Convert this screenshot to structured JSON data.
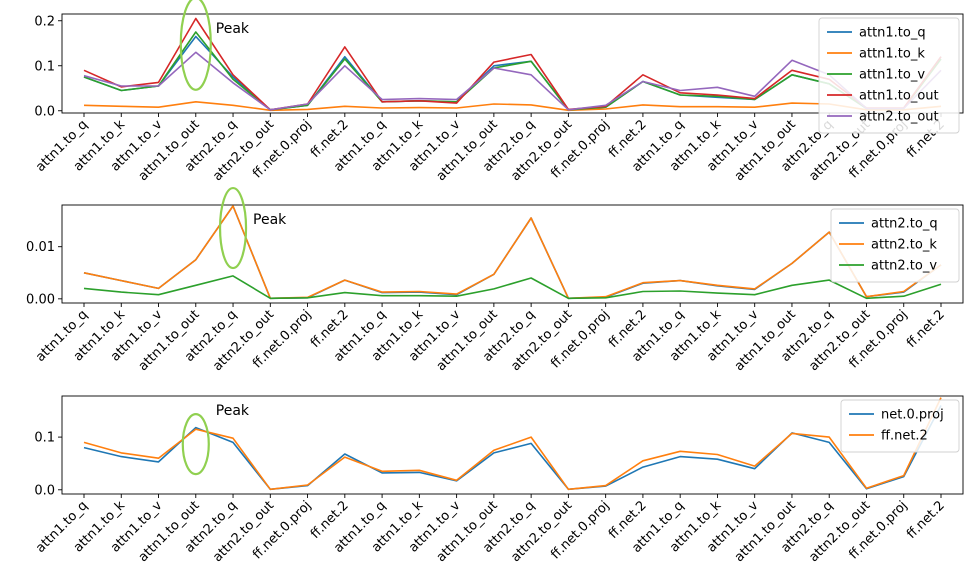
{
  "chart_data": [
    {
      "type": "line",
      "categories": [
        "attn1.to_q",
        "attn1.to_k",
        "attn1.to_v",
        "attn1.to_out",
        "attn2.to_q",
        "attn2.to_out",
        "ff.net.0.proj",
        "ff.net.2",
        "attn1.to_q",
        "attn1.to_k",
        "attn1.to_v",
        "attn1.to_out",
        "attn2.to_q",
        "attn2.to_out",
        "ff.net.0.proj",
        "ff.net.2",
        "attn1.to_q",
        "attn1.to_k",
        "attn1.to_v",
        "attn1.to_out",
        "attn2.to_q",
        "attn2.to_out",
        "ff.net.0.proj",
        "ff.net.2"
      ],
      "ylim": [
        -0.005,
        0.215
      ],
      "yticks": [
        0.0,
        0.1,
        0.2
      ],
      "ytick_labels": [
        "0.0",
        "0.1",
        "0.2"
      ],
      "legend_position": "top-right",
      "series": [
        {
          "name": "attn1.to_q",
          "color": "#1f77b4",
          "values": [
            0.075,
            0.045,
            0.055,
            0.165,
            0.075,
            0.002,
            0.012,
            0.12,
            0.02,
            0.022,
            0.02,
            0.1,
            0.11,
            0.002,
            0.008,
            0.065,
            0.035,
            0.03,
            0.025,
            0.08,
            0.06,
            0.005,
            0.005,
            0.12
          ]
        },
        {
          "name": "attn1.to_k",
          "color": "#ff7f0e",
          "values": [
            0.012,
            0.01,
            0.008,
            0.02,
            0.012,
            0.001,
            0.003,
            0.01,
            0.006,
            0.007,
            0.006,
            0.015,
            0.013,
            0.001,
            0.004,
            0.013,
            0.009,
            0.009,
            0.008,
            0.017,
            0.015,
            0.002,
            0.002,
            0.01
          ]
        },
        {
          "name": "attn1.to_v",
          "color": "#2ca02c",
          "values": [
            0.075,
            0.045,
            0.055,
            0.175,
            0.07,
            0.002,
            0.012,
            0.115,
            0.02,
            0.022,
            0.02,
            0.095,
            0.11,
            0.002,
            0.008,
            0.065,
            0.035,
            0.032,
            0.025,
            0.08,
            0.06,
            0.005,
            0.005,
            0.115
          ]
        },
        {
          "name": "attn1.to_out",
          "color": "#d62728",
          "values": [
            0.09,
            0.053,
            0.063,
            0.205,
            0.08,
            0.002,
            0.015,
            0.142,
            0.02,
            0.022,
            0.017,
            0.108,
            0.125,
            0.003,
            0.01,
            0.08,
            0.04,
            0.035,
            0.027,
            0.09,
            0.07,
            0.006,
            0.006,
            0.12
          ]
        },
        {
          "name": "attn2.to_out",
          "color": "#9467bd",
          "values": [
            0.078,
            0.055,
            0.055,
            0.13,
            0.062,
            0.002,
            0.015,
            0.1,
            0.025,
            0.027,
            0.025,
            0.095,
            0.08,
            0.002,
            0.012,
            0.065,
            0.045,
            0.052,
            0.032,
            0.112,
            0.08,
            0.005,
            0.005,
            0.09
          ]
        }
      ],
      "annotation": {
        "text": "Peak",
        "category_index": 3
      }
    },
    {
      "type": "line",
      "categories": [
        "attn1.to_q",
        "attn1.to_k",
        "attn1.to_v",
        "attn1.to_out",
        "attn2.to_q",
        "attn2.to_out",
        "ff.net.0.proj",
        "ff.net.2",
        "attn1.to_q",
        "attn1.to_k",
        "attn1.to_v",
        "attn1.to_out",
        "attn2.to_q",
        "attn2.to_out",
        "ff.net.0.proj",
        "ff.net.2",
        "attn1.to_q",
        "attn1.to_k",
        "attn1.to_v",
        "attn1.to_out",
        "attn2.to_q",
        "attn2.to_out",
        "ff.net.0.proj",
        "ff.net.2"
      ],
      "ylim": [
        -0.0008,
        0.018
      ],
      "yticks": [
        0.0,
        0.01
      ],
      "ytick_labels": [
        "0.00",
        "0.01"
      ],
      "legend_position": "top-right",
      "series": [
        {
          "name": "attn2.to_q",
          "color": "#1f77b4",
          "values": [
            0.005,
            0.0035,
            0.002,
            0.0075,
            0.0178,
            0.0001,
            0.0002,
            0.0036,
            0.0012,
            0.0013,
            0.0008,
            0.0047,
            0.0155,
            0.0001,
            0.0003,
            0.003,
            0.0035,
            0.0025,
            0.0018,
            0.0068,
            0.0128,
            0.0004,
            0.0013,
            0.0065
          ]
        },
        {
          "name": "attn2.to_k",
          "color": "#ff7f0e",
          "values": [
            0.005,
            0.0035,
            0.002,
            0.0075,
            0.0178,
            0.0001,
            0.0003,
            0.0036,
            0.0013,
            0.0014,
            0.0009,
            0.0047,
            0.0155,
            0.0001,
            0.0004,
            0.0031,
            0.0035,
            0.0026,
            0.0019,
            0.0068,
            0.0128,
            0.0004,
            0.0014,
            0.0065
          ]
        },
        {
          "name": "attn2.to_v",
          "color": "#2ca02c",
          "values": [
            0.002,
            0.0013,
            0.0008,
            0.0026,
            0.0044,
            0.0001,
            0.0002,
            0.0012,
            0.0006,
            0.0006,
            0.0005,
            0.0019,
            0.004,
            0.0001,
            0.0002,
            0.0014,
            0.0015,
            0.0011,
            0.0008,
            0.0026,
            0.0036,
            0.0001,
            0.0005,
            0.0028
          ]
        }
      ],
      "annotation": {
        "text": "Peak",
        "category_index": 4
      }
    },
    {
      "type": "line",
      "categories": [
        "attn1.to_q",
        "attn1.to_k",
        "attn1.to_v",
        "attn1.to_out",
        "attn2.to_q",
        "attn2.to_out",
        "ff.net.0.proj",
        "ff.net.2",
        "attn1.to_q",
        "attn1.to_k",
        "attn1.to_v",
        "attn1.to_out",
        "attn2.to_q",
        "attn2.to_out",
        "ff.net.0.proj",
        "ff.net.2",
        "attn1.to_q",
        "attn1.to_k",
        "attn1.to_v",
        "attn1.to_out",
        "attn2.to_q",
        "attn2.to_out",
        "ff.net.0.proj",
        "ff.net.2"
      ],
      "ylim": [
        -0.008,
        0.178
      ],
      "yticks": [
        0.0,
        0.1
      ],
      "ytick_labels": [
        "0.0",
        "0.1"
      ],
      "legend_position": "top-right",
      "series": [
        {
          "name": "net.0.proj",
          "color": "#1f77b4",
          "values": [
            0.08,
            0.063,
            0.053,
            0.118,
            0.09,
            0.001,
            0.008,
            0.068,
            0.032,
            0.033,
            0.017,
            0.07,
            0.088,
            0.001,
            0.007,
            0.043,
            0.063,
            0.058,
            0.04,
            0.108,
            0.09,
            0.002,
            0.025,
            0.16
          ]
        },
        {
          "name": "ff.net.2",
          "color": "#ff7f0e",
          "values": [
            0.09,
            0.07,
            0.06,
            0.115,
            0.098,
            0.001,
            0.009,
            0.062,
            0.035,
            0.037,
            0.018,
            0.075,
            0.1,
            0.001,
            0.008,
            0.055,
            0.073,
            0.067,
            0.045,
            0.107,
            0.1,
            0.003,
            0.027,
            0.175
          ]
        }
      ],
      "annotation": {
        "text": "Peak",
        "category_index": 3
      }
    }
  ]
}
